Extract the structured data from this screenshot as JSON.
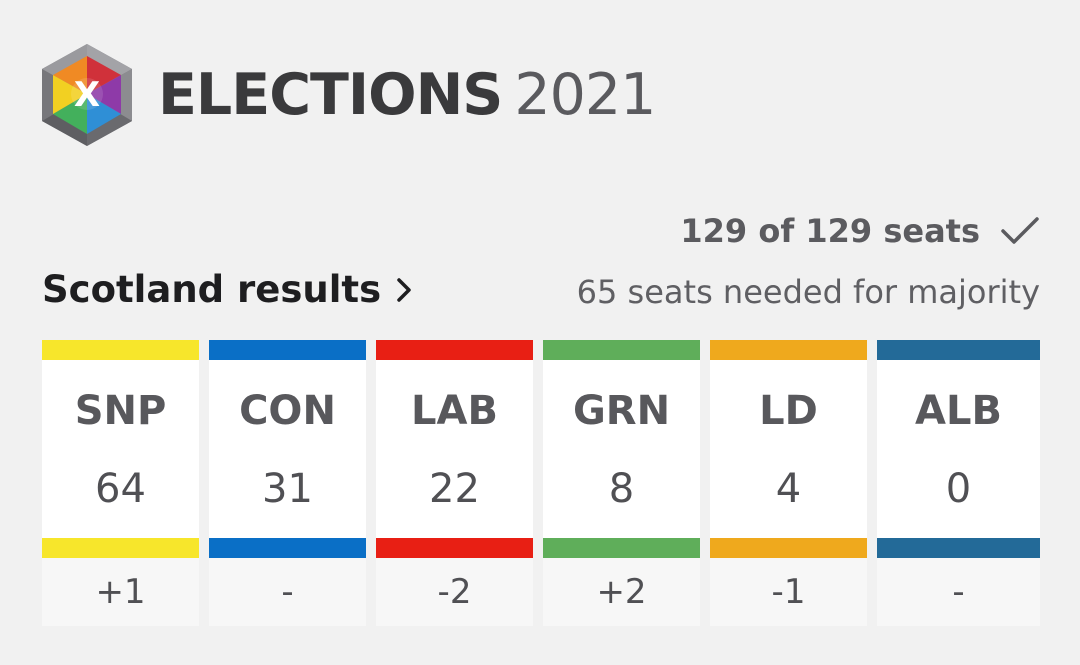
{
  "header": {
    "title_word": "ELECTIONS",
    "title_year": "2021",
    "logo_letter": "X",
    "logo_icon": "elections-cube-logo"
  },
  "summary": {
    "seats_declared": "129 of 129 seats",
    "complete_icon": "checkmark-icon",
    "results_link": "Scotland results",
    "results_link_icon": "chevron-right-icon",
    "majority_text": "65 seats needed for majority"
  },
  "parties": [
    {
      "name": "SNP",
      "seats": "64",
      "change": "+1",
      "color": "#f7e62b"
    },
    {
      "name": "CON",
      "seats": "31",
      "change": "-",
      "color": "#0a6fc6"
    },
    {
      "name": "LAB",
      "seats": "22",
      "change": "-2",
      "color": "#e81f14"
    },
    {
      "name": "GRN",
      "seats": "8",
      "change": "+2",
      "color": "#5fae5a"
    },
    {
      "name": "LD",
      "seats": "4",
      "change": "-1",
      "color": "#efa91d"
    },
    {
      "name": "ALB",
      "seats": "0",
      "change": "-",
      "color": "#236a98"
    }
  ]
}
